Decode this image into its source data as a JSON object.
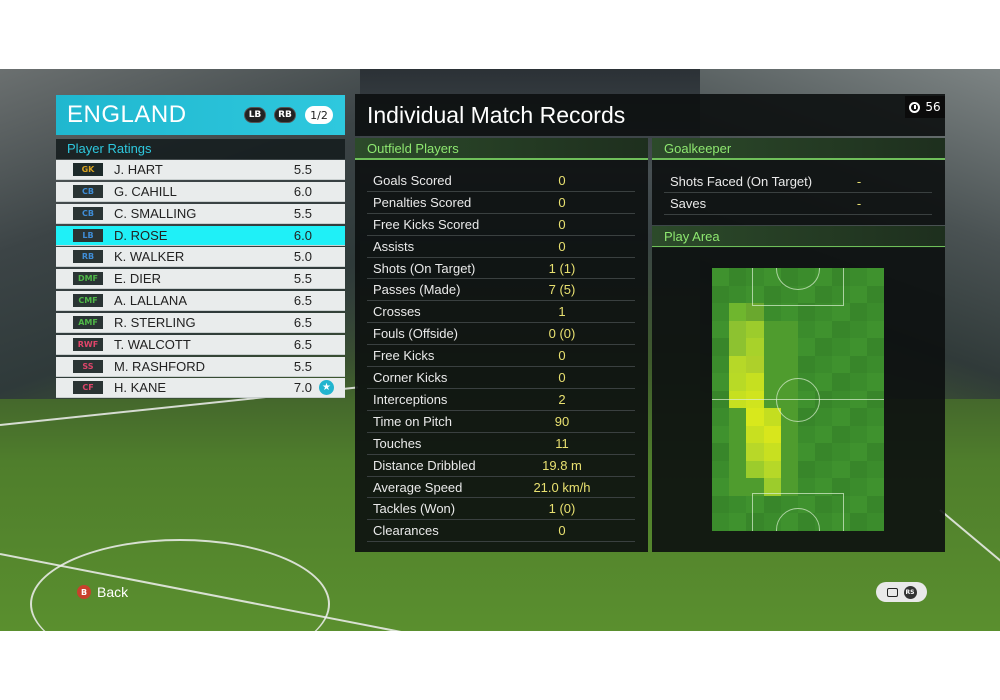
{
  "team": {
    "name": "ENGLAND",
    "positions": [
      "LB",
      "RB"
    ],
    "page": "1/2",
    "ratings_title": "Player Ratings",
    "players": [
      {
        "pos": "GK",
        "name": "J. HART",
        "rating": "5.5",
        "pos_color": "#d9a21f"
      },
      {
        "pos": "CB",
        "name": "G. CAHILL",
        "rating": "6.0",
        "pos_color": "#3f8dd6"
      },
      {
        "pos": "CB",
        "name": "C. SMALLING",
        "rating": "5.5",
        "pos_color": "#3f8dd6"
      },
      {
        "pos": "LB",
        "name": "D. ROSE",
        "rating": "6.0",
        "pos_color": "#3f8dd6",
        "selected": true
      },
      {
        "pos": "RB",
        "name": "K. WALKER",
        "rating": "5.0",
        "pos_color": "#3f8dd6"
      },
      {
        "pos": "DMF",
        "name": "E. DIER",
        "rating": "5.5",
        "pos_color": "#4fb848"
      },
      {
        "pos": "CMF",
        "name": "A. LALLANA",
        "rating": "6.5",
        "pos_color": "#4fb848"
      },
      {
        "pos": "AMF",
        "name": "R. STERLING",
        "rating": "6.5",
        "pos_color": "#4fb848"
      },
      {
        "pos": "RWF",
        "name": "T. WALCOTT",
        "rating": "6.5",
        "pos_color": "#e0456a"
      },
      {
        "pos": "SS",
        "name": "M. RASHFORD",
        "rating": "5.5",
        "pos_color": "#e0456a"
      },
      {
        "pos": "CF",
        "name": "H. KANE",
        "rating": "7.0",
        "pos_color": "#e0456a",
        "star": true
      }
    ]
  },
  "records": {
    "title": "Individual Match Records",
    "time": "56",
    "outfield_title": "Outfield Players",
    "outfield_stats": [
      {
        "label": "Goals Scored",
        "value": "0"
      },
      {
        "label": "Penalties Scored",
        "value": "0"
      },
      {
        "label": "Free Kicks Scored",
        "value": "0"
      },
      {
        "label": "Assists",
        "value": "0"
      },
      {
        "label": "Shots (On Target)",
        "value": "1 (1)"
      },
      {
        "label": "Passes (Made)",
        "value": "7 (5)"
      },
      {
        "label": "Crosses",
        "value": "1"
      },
      {
        "label": "Fouls (Offside)",
        "value": "0 (0)"
      },
      {
        "label": "Free Kicks",
        "value": "0"
      },
      {
        "label": "Corner Kicks",
        "value": "0"
      },
      {
        "label": "Interceptions",
        "value": "2"
      },
      {
        "label": "Time on Pitch",
        "value": "90"
      },
      {
        "label": "Touches",
        "value": "11"
      },
      {
        "label": "Distance Dribbled",
        "value": "19.8 m"
      },
      {
        "label": "Average Speed",
        "value": "21.0 km/h"
      },
      {
        "label": "Tackles (Won)",
        "value": "1 (0)"
      },
      {
        "label": "Clearances",
        "value": "0"
      }
    ],
    "goalkeeper_title": "Goalkeeper",
    "goalkeeper_stats": [
      {
        "label": "Shots Faced (On Target)",
        "value": "-"
      },
      {
        "label": "Saves",
        "value": "-"
      }
    ],
    "play_area_title": "Play Area"
  },
  "controls": {
    "back_button": "B",
    "back_label": "Back",
    "rs_label": "RS"
  },
  "colors": {
    "accent": "#2ec8de",
    "selected_row": "#1ff0f7",
    "section_green": "#8ee870",
    "stat_value": "#e8e070"
  }
}
